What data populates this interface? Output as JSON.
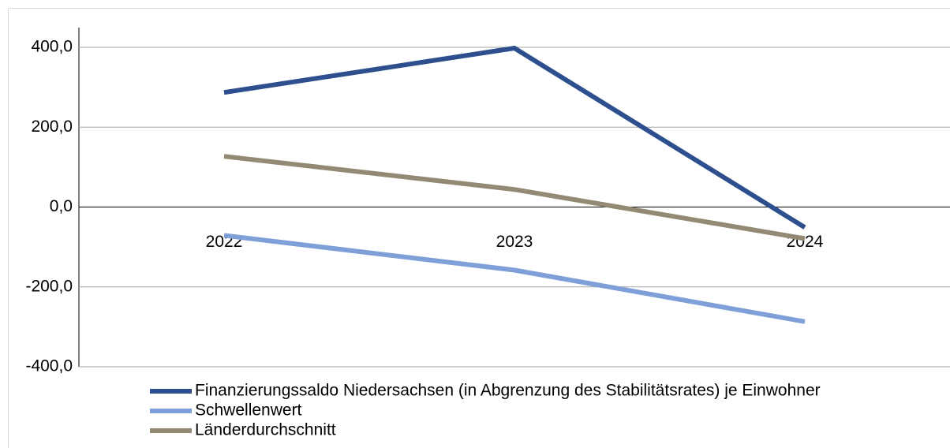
{
  "chart_data": {
    "type": "line",
    "categories": [
      "2022",
      "2023",
      "2024"
    ],
    "series": [
      {
        "name": "Finanzierungssaldo Niedersachsen (in Abgrenzung des Stabilitätsrates) je Einwohner",
        "color": "#2e4f8e",
        "values": [
          287,
          398,
          -51
        ]
      },
      {
        "name": "Schwellenwert",
        "color": "#7f9fd9",
        "values": [
          -71,
          -158,
          -287
        ]
      },
      {
        "name": "Länderdurchschnitt",
        "color": "#948a74",
        "values": [
          127,
          44,
          -79
        ]
      }
    ],
    "ylim": [
      -400,
      400
    ],
    "yticks": [
      {
        "value": -400,
        "label": "-400,0"
      },
      {
        "value": -200,
        "label": "-200,0"
      },
      {
        "value": 0,
        "label": "0,0"
      },
      {
        "value": 200,
        "label": "200,0"
      },
      {
        "value": 400,
        "label": "400,0"
      }
    ],
    "grid": true
  }
}
